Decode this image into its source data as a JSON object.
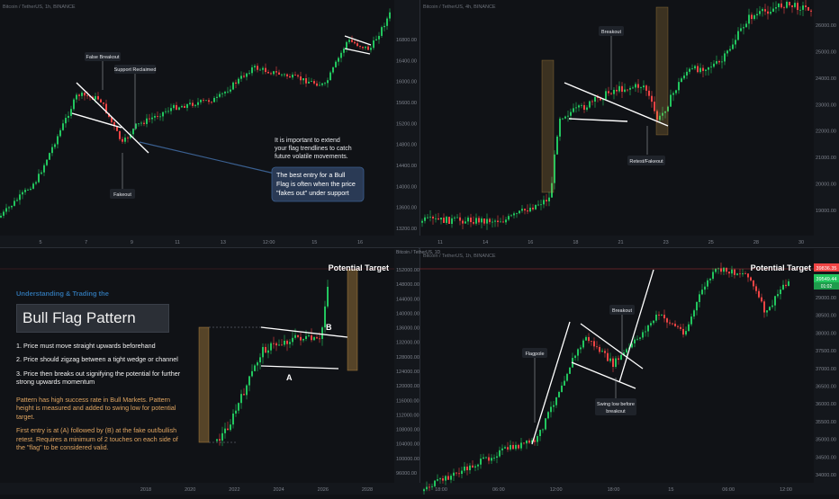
{
  "colors": {
    "up": "#22c55e",
    "down": "#ef4444",
    "bg": "#101216",
    "axis": "#7d828c",
    "wedge": "#d9a24a",
    "accent": "#2e6fa8",
    "callout": "#2a3a55"
  },
  "panels": {
    "tl": {
      "header": "Bitcoin / TetherUS, 1h, BINANCE",
      "labels": {
        "false_breakout": "False Breakout",
        "support_reclaimed": "Support Reclaimed",
        "fakeout": "Fakeout"
      },
      "note": [
        "It is important to extend",
        "your flag trendlines to catch",
        "future volatile movements."
      ],
      "callout": [
        "The best entry for a Bull",
        "Flag is often when the price",
        "\"fakes out\" under support"
      ],
      "x_ticks": [
        "5",
        "7",
        "9",
        "11",
        "13",
        "12:00",
        "15",
        "16"
      ],
      "y_ticks": [
        "16800.00",
        "16400.00",
        "16000.00",
        "15600.00",
        "15200.00",
        "14800.00",
        "14400.00",
        "14000.00",
        "13600.00",
        "13200.00"
      ]
    },
    "tr": {
      "header": "Bitcoin / TetherUS, 4h, BINANCE",
      "labels": {
        "breakout": "Breakout",
        "retest": "Retest/Fakeout"
      },
      "x_ticks": [
        "11",
        "14",
        "16",
        "18",
        "21",
        "23",
        "25",
        "28",
        "30"
      ],
      "y_ticks": [
        "26000.00",
        "25000.00",
        "24000.00",
        "23000.00",
        "22000.00",
        "21000.00",
        "20000.00",
        "19000.00"
      ]
    },
    "bl": {
      "header": "Bitcoin / TetherUS, 1D",
      "potential_target": "Potential Target",
      "labels": {
        "a": "A",
        "b": "B"
      },
      "x_ticks": [
        "2018",
        "2020",
        "2022",
        "2024",
        "2026",
        "2028"
      ],
      "y_ticks": [
        "152000.00",
        "148000.00",
        "144000.00",
        "140000.00",
        "136000.00",
        "132000.00",
        "128000.00",
        "124000.00",
        "120000.00",
        "116000.00",
        "112000.00",
        "108000.00",
        "104000.00",
        "100000.00",
        "96000.00"
      ]
    },
    "br": {
      "header": "Bitcoin / TetherUS, 1h, BINANCE",
      "potential_target": "Potential Target",
      "labels": {
        "flagpole": "Flagpole",
        "breakout": "Breakout",
        "swing_low": [
          "Swing low before",
          "breakout"
        ]
      },
      "price_tags": [
        "39836.35",
        "39549.44",
        "01:02"
      ],
      "x_ticks": [
        "18:00",
        "06:00",
        "12:00",
        "18:00",
        "15",
        "06:00",
        "12:00"
      ],
      "y_ticks": [
        "29000.00",
        "38500.00",
        "38000.00",
        "37500.00",
        "37000.00",
        "36500.00",
        "36000.00",
        "35500.00",
        "35000.00",
        "34500.00",
        "34000.00"
      ]
    }
  },
  "info": {
    "subtitle": "Understanding & Trading the",
    "title": "Bull Flag Pattern",
    "steps": [
      "1. Price must move straight upwards beforehand",
      "2. Price should zigzag between a tight wedge or channel",
      "3. Price then breaks out signifying the potential for further strong upwards momentum"
    ],
    "note1": "Pattern has high success rate in Bull Markets. Pattern height is measured and added to swing low for potential target.",
    "note2": "First entry is at (A) followed by (B) at the fake out/bullish retest. Requires a minimum of 2 touches on each side of the \"flag\" to be considered valid."
  }
}
